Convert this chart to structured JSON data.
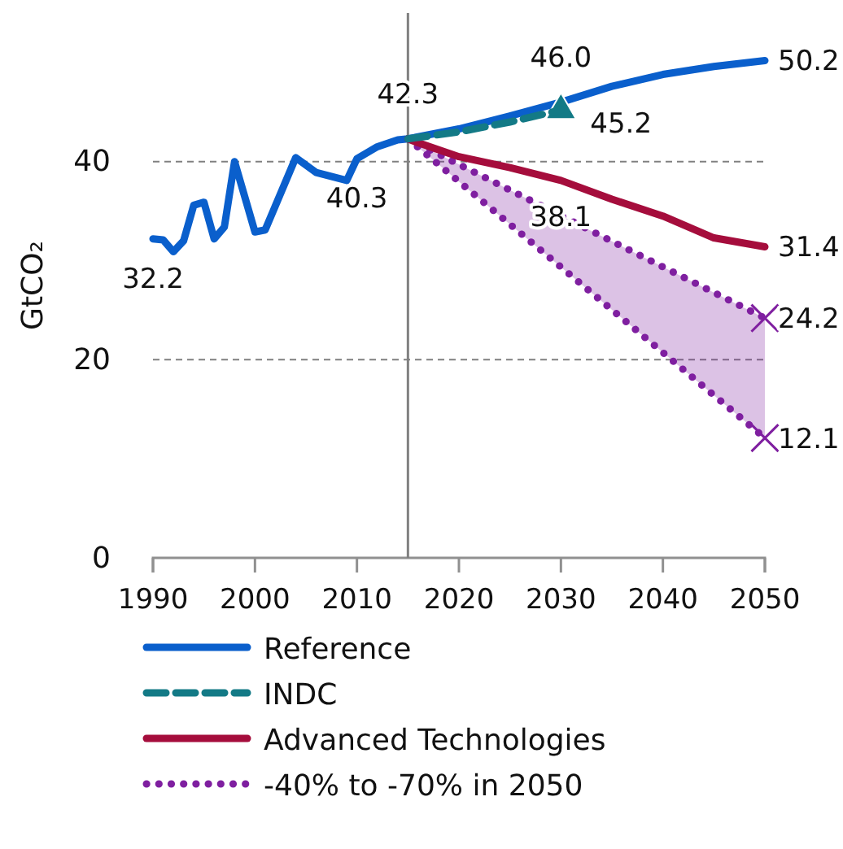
{
  "chart_data": {
    "type": "line",
    "ylabel": "GtCO₂",
    "xlim": [
      1990,
      2050
    ],
    "xticks": [
      1990,
      2000,
      2010,
      2020,
      2030,
      2040,
      2050
    ],
    "ylim": [
      0,
      55
    ],
    "yticks": [
      0,
      20,
      40
    ],
    "grid": "y",
    "legend": "bottom",
    "ref_lines": [
      {
        "axis": "x",
        "value": 2015,
        "color": "#808080"
      }
    ],
    "series": [
      {
        "name": "Reference",
        "color": "#0a5fcc",
        "line_style": "solid",
        "x": [
          1990,
          1991,
          1992,
          1993,
          1994,
          1995,
          1996,
          1997,
          1998,
          2000,
          2001,
          2004,
          2006,
          2009,
          2010,
          2012,
          2014,
          2015,
          2020,
          2025,
          2030,
          2035,
          2040,
          2045,
          2050
        ],
        "values": [
          32.2,
          32.1,
          30.9,
          32.0,
          35.6,
          35.9,
          32.2,
          33.4,
          40.0,
          32.9,
          33.1,
          40.4,
          38.9,
          38.1,
          40.3,
          41.5,
          42.2,
          42.3,
          43.3,
          44.6,
          46.0,
          47.6,
          48.8,
          49.6,
          50.2
        ],
        "value_labels": [
          "32.2",
          null,
          null,
          null,
          null,
          null,
          null,
          null,
          null,
          null,
          null,
          null,
          null,
          null,
          "40.3",
          null,
          null,
          "42.3",
          null,
          null,
          "46.0",
          null,
          null,
          null,
          "50.2"
        ]
      },
      {
        "name": "INDC",
        "color": "#137a86",
        "line_style": "dashed",
        "x": [
          2015,
          2020,
          2025,
          2030
        ],
        "values": [
          42.3,
          43.0,
          44.0,
          45.2
        ]
      },
      {
        "type": "scatter",
        "color": "#137a86",
        "marker": "triangle",
        "x": [
          2030
        ],
        "values": [
          45.2
        ],
        "value_labels": [
          "45.2"
        ]
      },
      {
        "name": "Advanced Technologies",
        "color": "#a50d3c",
        "line_style": "solid",
        "x": [
          2015,
          2016,
          2020,
          2025,
          2030,
          2035,
          2040,
          2045,
          2050
        ],
        "values": [
          42.3,
          41.9,
          40.5,
          39.4,
          38.1,
          36.2,
          34.5,
          32.3,
          31.4
        ],
        "value_labels": [
          null,
          null,
          null,
          null,
          "38.1",
          null,
          null,
          null,
          "31.4"
        ]
      },
      {
        "name": "-40% to -70% in 2050",
        "color": "#7f1fa0",
        "line_style": "dotted",
        "x": [
          2015,
          2050
        ],
        "values": [
          42.3,
          24.2
        ],
        "lower": [
          42.3,
          12.1
        ],
        "upper": [
          42.3,
          24.2
        ]
      },
      {
        "color": "#7f1fa0",
        "line_style": "dotted",
        "x": [
          2015,
          2050
        ],
        "values": [
          42.3,
          12.1
        ]
      },
      {
        "type": "scatter",
        "color": "#7f1fa0",
        "marker": "cross",
        "x": [
          2050,
          2050
        ],
        "values": [
          24.2,
          12.1
        ],
        "value_labels": [
          "24.2",
          "12.1"
        ]
      }
    ]
  }
}
